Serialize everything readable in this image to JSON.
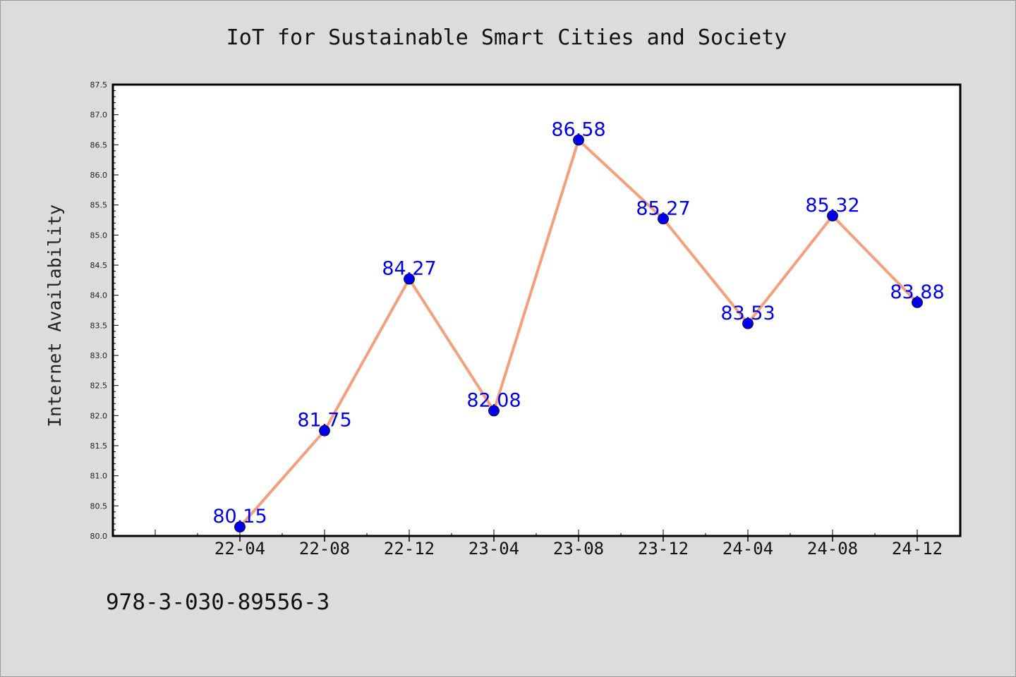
{
  "chart_data": {
    "type": "line",
    "title": "IoT for Sustainable Smart Cities and Society",
    "xlabel": "",
    "ylabel": "Internet Availability",
    "categories": [
      "22-04",
      "22-08",
      "22-12",
      "23-04",
      "23-08",
      "23-12",
      "24-04",
      "24-08",
      "24-12"
    ],
    "series": [
      {
        "values": [
          80.15,
          81.75,
          84.27,
          82.08,
          86.58,
          85.27,
          83.53,
          85.32,
          83.88
        ],
        "labels": [
          "80.15",
          "81.75",
          "84.27",
          "82.08",
          "86.58",
          "85.27",
          "83.53",
          "85.32",
          "83.88"
        ],
        "line_color": "#f4a07c",
        "marker_color": "#0000ee",
        "label_color": "#0000ee"
      }
    ],
    "ylim": [
      80.0,
      87.5
    ],
    "yticks": [
      "80.0",
      "80.5",
      "81.0",
      "81.5",
      "82.0",
      "82.5",
      "83.0",
      "83.5",
      "84.0",
      "84.5",
      "85.0",
      "85.5",
      "86.0",
      "86.5",
      "87.0",
      "87.5"
    ],
    "grid": false,
    "legend": "none",
    "plot_background": "#ffffff",
    "figure_background": "#dcdcdc"
  },
  "footer_text": "978-3-030-89556-3"
}
